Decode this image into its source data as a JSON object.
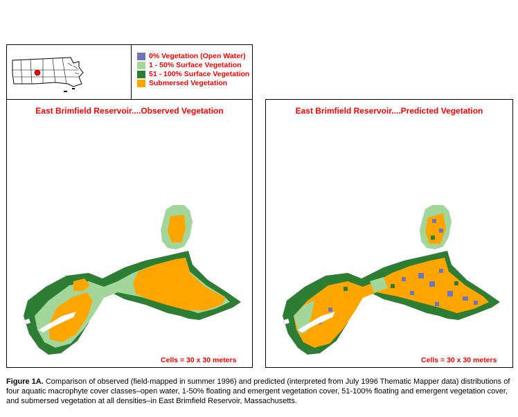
{
  "legend": {
    "items": [
      {
        "label": "0% Vegetation (Open Water)",
        "color": "#6f76b8"
      },
      {
        "label": "1 - 50% Surface Vegetation",
        "color": "#a2d69b"
      },
      {
        "label": "51 - 100% Surface Vegetation",
        "color": "#2e7d34"
      },
      {
        "label": "Submersed Vegetation",
        "color": "#ffa500"
      }
    ]
  },
  "observed": {
    "title": "East Brimfield Reservoir....Observed Vegetation",
    "cells_note": "Cells = 30 x 30 meters"
  },
  "predicted": {
    "title": "East Brimfield Reservoir....Predicted Vegetation",
    "cells_note": "Cells = 30 x 30 meters"
  },
  "caption": {
    "label": "Figure 1A.",
    "text": "Comparison of observed (field-mapped in summer 1996) and predicted (interpreted from July 1996 Thematic Mapper data) distributions of four aquatic macrophyte cover classes–open water, 1-50% floating and emergent vegetation cover, 51-100% floating and emergent vegetation cover, and submersed vegetation at all densities–in East Brimfield Reservoir, Massachusetts."
  }
}
